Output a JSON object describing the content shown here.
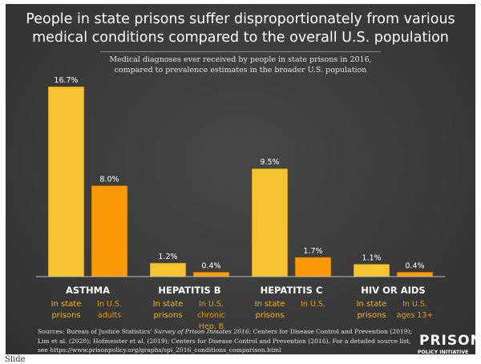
{
  "chart_data": {
    "type": "bar",
    "title": "People in state prisons suffer disproportionately from various medical conditions compared to the overall U.S. population",
    "subtitle_lines": [
      "Medical diagnoses ever received by people in state prisons in 2016,",
      "compared to prevalence estimates in the broader U.S. population"
    ],
    "title_lines": [
      "People in state prisons suffer disproportionately from various",
      "medical conditions compared to the overall U.S. population"
    ],
    "categories": [
      "ASTHMA",
      "HEPATITIS B",
      "HEPATITIS C",
      "HIV OR AIDS"
    ],
    "series": [
      {
        "values": [
          16.7,
          1.2,
          9.5,
          1.1
        ],
        "labels": [
          "16.7%",
          "1.2%",
          "9.5%",
          "1.1%"
        ],
        "sublabels": [
          "In state prisons",
          "In state prisons",
          "In state prisons",
          "In state prisons"
        ],
        "color": "#f6c433"
      },
      {
        "values": [
          8.0,
          0.4,
          1.7,
          0.4
        ],
        "labels": [
          "8.0%",
          "0.4%",
          "1.7%",
          "0.4%"
        ],
        "sublabels": [
          "In U.S. adults",
          "In U.S. chronic Hep. B",
          "In U.S.",
          "In U.S. ages 13+"
        ],
        "color": "#fb9a06"
      }
    ],
    "ylim": [
      0,
      17
    ],
    "grid": false,
    "xlabel": "",
    "ylabel": ""
  },
  "sublabel_lines": {
    "state": [
      "In state",
      "prisons"
    ],
    "us": [
      [
        "In U.S.",
        "adults"
      ],
      [
        "In U.S.",
        "chronic",
        "Hep. B"
      ],
      [
        "In U.S."
      ],
      [
        "In U.S.",
        "ages 13+"
      ]
    ]
  },
  "sources": {
    "prefix": "Sources: Bureau of Justice Statistics' ",
    "italic": "Survey of Prison Inmates 2016",
    "rest": "; Centers for Disease Control and Prevention (2019); Lim et al. (2020); Hofmeister et al. (2019); Centers for Disease Control and Prevention (2016). For a detailed source list, see https://www.prisonpolicy.org/graphs/spi_2016_conditions_comparison.html"
  },
  "logo": {
    "line1": "PRISON",
    "line2": "POLICY INITIATIVE"
  },
  "caption": "Slide"
}
